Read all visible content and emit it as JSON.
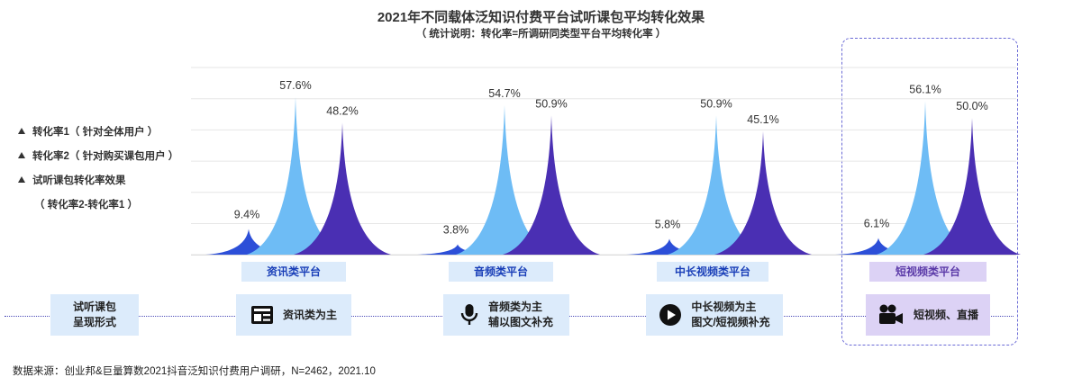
{
  "title": "2021年不同载体泛知识付费平台试听课包平均转化效果",
  "subtitle": "（ 统计说明：转化率=所调研同类型平台平均转化率 ）",
  "legend": {
    "items": [
      {
        "label": "转化率1（ 针对全体用户 ）",
        "color": "#2c4fd8"
      },
      {
        "label": "转化率2（ 针对购买课包用户 ）",
        "color": "#6ebcf5"
      },
      {
        "label": "试听课包转化率效果",
        "color": "#4a2fb3"
      }
    ],
    "note": "（ 转化率2-转化率1 ）"
  },
  "chart_data": {
    "type": "area",
    "categories": [
      "资讯类平台",
      "音频类平台",
      "中长视频类平台",
      "短视频类平台"
    ],
    "series": [
      {
        "name": "转化率1（ 针对全体用户 ）",
        "values": [
          9.4,
          3.8,
          5.8,
          6.1
        ],
        "labels": [
          "9.4%",
          "3.8%",
          "5.8%",
          "6.1%"
        ]
      },
      {
        "name": "转化率2（ 针对购买课包用户 ）",
        "values": [
          57.6,
          54.7,
          50.9,
          56.1
        ],
        "labels": [
          "57.6%",
          "54.7%",
          "50.9%",
          "56.1%"
        ]
      },
      {
        "name": "试听课包转化率效果",
        "values": [
          48.2,
          50.9,
          45.1,
          50.0
        ],
        "labels": [
          "48.2%",
          "50.9%",
          "45.1%",
          "50.0%"
        ]
      }
    ],
    "ylim": [
      0,
      60
    ],
    "grid": true,
    "highlight_category": "短视频类平台"
  },
  "form_row": {
    "label_line1": "试听课包",
    "label_line2": "呈现形式",
    "items": [
      {
        "icon": "newspaper-icon",
        "line1": "资讯类为主",
        "line2": ""
      },
      {
        "icon": "microphone-icon",
        "line1": "音频类为主",
        "line2": "辅以图文补充"
      },
      {
        "icon": "play-icon",
        "line1": "中长视频为主",
        "line2": "图文/短视频补充"
      },
      {
        "icon": "video-camera-icon",
        "line1": "短视频、直播",
        "line2": ""
      }
    ]
  },
  "source": "数据来源：创业邦&巨量算数2021抖音泛知识付费用户调研，N=2462，2021.10"
}
